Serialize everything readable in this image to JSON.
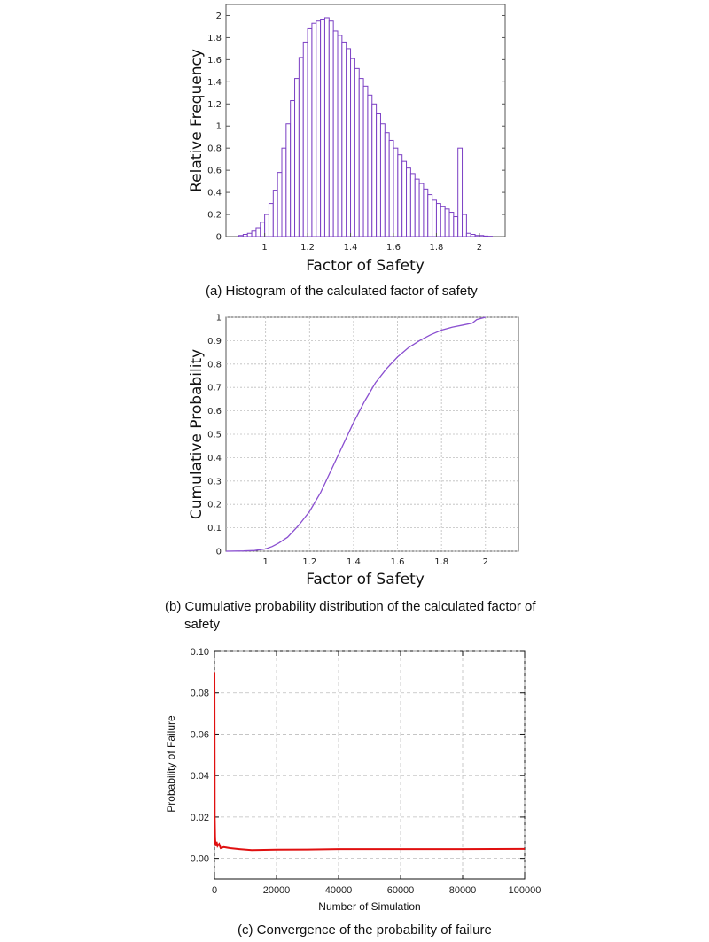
{
  "chart_data": [
    {
      "type": "bar",
      "title": "",
      "xlabel": "Factor of Safety",
      "ylabel": "Relative Frequency",
      "xlim": [
        0.82,
        2.12
      ],
      "ylim": [
        0,
        2.1
      ],
      "xticks": [
        "1",
        "1.2",
        "1.4",
        "1.6",
        "1.8",
        "2"
      ],
      "yticks": [
        "0",
        "0.2",
        "0.4",
        "0.6",
        "0.8",
        "1",
        "1.2",
        "1.4",
        "1.6",
        "1.8",
        "2"
      ],
      "bin_width": 0.02,
      "bins_start": [
        0.88,
        0.9,
        0.92,
        0.94,
        0.96,
        0.98,
        1.0,
        1.02,
        1.04,
        1.06,
        1.08,
        1.1,
        1.12,
        1.14,
        1.16,
        1.18,
        1.2,
        1.22,
        1.24,
        1.26,
        1.28,
        1.3,
        1.32,
        1.34,
        1.36,
        1.38,
        1.4,
        1.42,
        1.44,
        1.46,
        1.48,
        1.5,
        1.52,
        1.54,
        1.56,
        1.58,
        1.6,
        1.62,
        1.64,
        1.66,
        1.68,
        1.7,
        1.72,
        1.74,
        1.76,
        1.78,
        1.8,
        1.82,
        1.84,
        1.86,
        1.88,
        1.9,
        1.92,
        1.94,
        1.96,
        1.98,
        2.0,
        2.02,
        2.04
      ],
      "values": [
        0.01,
        0.02,
        0.03,
        0.05,
        0.08,
        0.13,
        0.2,
        0.3,
        0.42,
        0.58,
        0.8,
        1.02,
        1.23,
        1.43,
        1.62,
        1.76,
        1.88,
        1.93,
        1.95,
        1.96,
        1.98,
        1.95,
        1.86,
        1.82,
        1.76,
        1.7,
        1.61,
        1.52,
        1.43,
        1.36,
        1.28,
        1.2,
        1.11,
        1.02,
        0.94,
        0.87,
        0.8,
        0.74,
        0.68,
        0.62,
        0.57,
        0.52,
        0.48,
        0.43,
        0.38,
        0.33,
        0.3,
        0.27,
        0.25,
        0.22,
        0.18,
        0.8,
        0.2,
        0.03,
        0.02,
        0.01,
        0.01,
        0.005,
        0.003
      ]
    },
    {
      "type": "line",
      "title": "",
      "xlabel": "Factor of Safety",
      "ylabel": "Cumulative Probability",
      "xlim": [
        0.82,
        2.15
      ],
      "ylim": [
        0,
        1.0
      ],
      "xticks": [
        "1",
        "1.2",
        "1.4",
        "1.6",
        "1.8",
        "2"
      ],
      "yticks": [
        "0",
        "0.1",
        "0.2",
        "0.3",
        "0.4",
        "0.5",
        "0.6",
        "0.7",
        "0.8",
        "0.9",
        "1"
      ],
      "grid": true,
      "x": [
        0.82,
        0.9,
        0.95,
        1.0,
        1.03,
        1.06,
        1.1,
        1.15,
        1.2,
        1.25,
        1.3,
        1.35,
        1.4,
        1.45,
        1.5,
        1.55,
        1.6,
        1.65,
        1.7,
        1.75,
        1.8,
        1.85,
        1.9,
        1.94,
        1.96,
        2.0
      ],
      "y": [
        0.0,
        0.001,
        0.003,
        0.01,
        0.02,
        0.035,
        0.06,
        0.11,
        0.17,
        0.25,
        0.35,
        0.45,
        0.55,
        0.64,
        0.72,
        0.78,
        0.83,
        0.87,
        0.9,
        0.925,
        0.945,
        0.958,
        0.967,
        0.975,
        0.99,
        1.0
      ]
    },
    {
      "type": "line",
      "title": "",
      "xlabel": "Number of Simulation",
      "ylabel": "Probability of Failure",
      "xlim": [
        0,
        100000
      ],
      "ylim": [
        -0.01,
        0.1
      ],
      "xticks": [
        "0",
        "20000",
        "40000",
        "60000",
        "80000",
        "100000"
      ],
      "yticks": [
        "0.00",
        "0.02",
        "0.04",
        "0.06",
        "0.08",
        "0.10"
      ],
      "grid": true,
      "x": [
        0,
        50,
        100,
        200,
        300,
        500,
        700,
        1000,
        1500,
        2000,
        3000,
        5000,
        8000,
        12000,
        20000,
        30000,
        40000,
        60000,
        80000,
        100000
      ],
      "y": [
        0.09,
        0.05,
        0.02,
        0.01,
        0.007,
        0.006,
        0.008,
        0.006,
        0.007,
        0.005,
        0.0055,
        0.005,
        0.0045,
        0.004,
        0.0042,
        0.0043,
        0.0045,
        0.0045,
        0.0045,
        0.0046
      ]
    }
  ],
  "captions": {
    "a": "(a) Histogram of the calculated factor of safety",
    "b": "(b) Cumulative probability distribution of the calculated factor of",
    "b2": "safety",
    "c": "(c) Convergence of the probability of failure"
  },
  "colors": {
    "hist_bar": "#7b3fc4",
    "cdf_line": "#8a4fd0",
    "conv_line": "#e01010",
    "grid": "#bdbdbd"
  }
}
